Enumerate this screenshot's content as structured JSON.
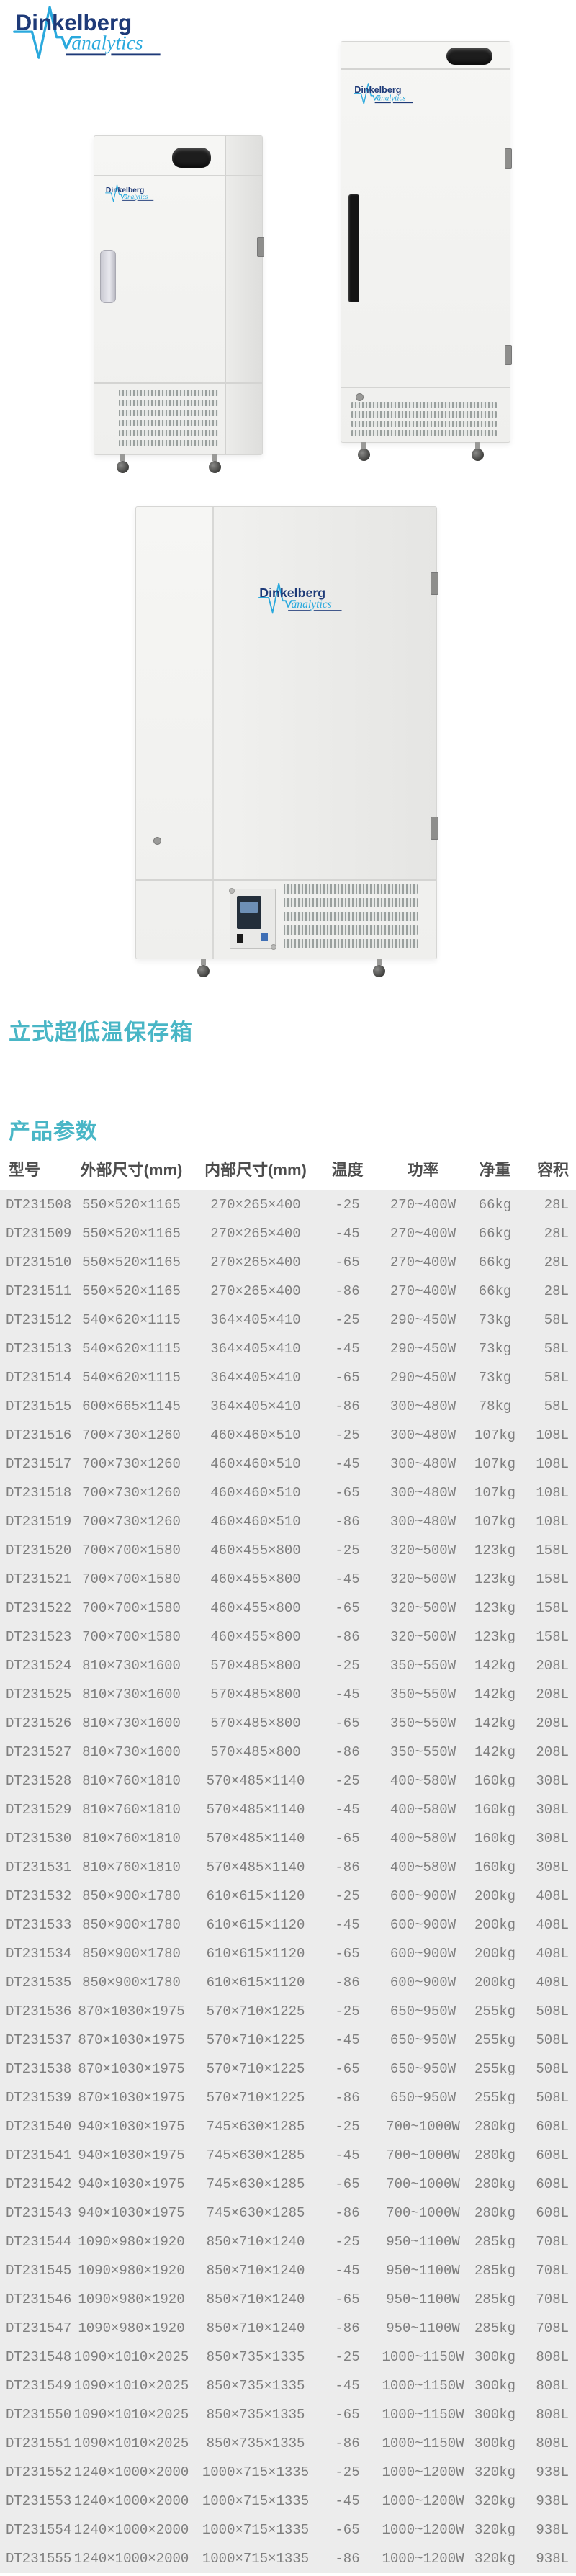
{
  "brand": {
    "name": "Dinkelberg",
    "tagline": "analytics"
  },
  "colors": {
    "brand_navy": "#1e3a78",
    "brand_blue": "#2aa9dd",
    "accent_teal": "#49b6c6",
    "table_header_text": "#4d4d4d",
    "table_body_text": "#7e7e7e",
    "table_body_bg": "#ececec"
  },
  "titles": {
    "product": "立式超低温保存箱",
    "section": "产品参数"
  },
  "table": {
    "columns": [
      "型号",
      "外部尺寸(mm)",
      "内部尺寸(mm)",
      "温度",
      "功率",
      "净重",
      "容积"
    ],
    "rows": [
      [
        "DT231508",
        "550×520×1165",
        "270×265×400",
        "-25",
        "270~400W",
        "66kg",
        "28L"
      ],
      [
        "DT231509",
        "550×520×1165",
        "270×265×400",
        "-45",
        "270~400W",
        "66kg",
        "28L"
      ],
      [
        "DT231510",
        "550×520×1165",
        "270×265×400",
        "-65",
        "270~400W",
        "66kg",
        "28L"
      ],
      [
        "DT231511",
        "550×520×1165",
        "270×265×400",
        "-86",
        "270~400W",
        "66kg",
        "28L"
      ],
      [
        "DT231512",
        "540×620×1115",
        "364×405×410",
        "-25",
        "290~450W",
        "73kg",
        "58L"
      ],
      [
        "DT231513",
        "540×620×1115",
        "364×405×410",
        "-45",
        "290~450W",
        "73kg",
        "58L"
      ],
      [
        "DT231514",
        "540×620×1115",
        "364×405×410",
        "-65",
        "290~450W",
        "73kg",
        "58L"
      ],
      [
        "DT231515",
        "600×665×1145",
        "364×405×410",
        "-86",
        "300~480W",
        "78kg",
        "58L"
      ],
      [
        "DT231516",
        "700×730×1260",
        "460×460×510",
        "-25",
        "300~480W",
        "107kg",
        "108L"
      ],
      [
        "DT231517",
        "700×730×1260",
        "460×460×510",
        "-45",
        "300~480W",
        "107kg",
        "108L"
      ],
      [
        "DT231518",
        "700×730×1260",
        "460×460×510",
        "-65",
        "300~480W",
        "107kg",
        "108L"
      ],
      [
        "DT231519",
        "700×730×1260",
        "460×460×510",
        "-86",
        "300~480W",
        "107kg",
        "108L"
      ],
      [
        "DT231520",
        "700×700×1580",
        "460×455×800",
        "-25",
        "320~500W",
        "123kg",
        "158L"
      ],
      [
        "DT231521",
        "700×700×1580",
        "460×455×800",
        "-45",
        "320~500W",
        "123kg",
        "158L"
      ],
      [
        "DT231522",
        "700×700×1580",
        "460×455×800",
        "-65",
        "320~500W",
        "123kg",
        "158L"
      ],
      [
        "DT231523",
        "700×700×1580",
        "460×455×800",
        "-86",
        "320~500W",
        "123kg",
        "158L"
      ],
      [
        "DT231524",
        "810×730×1600",
        "570×485×800",
        "-25",
        "350~550W",
        "142kg",
        "208L"
      ],
      [
        "DT231525",
        "810×730×1600",
        "570×485×800",
        "-45",
        "350~550W",
        "142kg",
        "208L"
      ],
      [
        "DT231526",
        "810×730×1600",
        "570×485×800",
        "-65",
        "350~550W",
        "142kg",
        "208L"
      ],
      [
        "DT231527",
        "810×730×1600",
        "570×485×800",
        "-86",
        "350~550W",
        "142kg",
        "208L"
      ],
      [
        "DT231528",
        "810×760×1810",
        "570×485×1140",
        "-25",
        "400~580W",
        "160kg",
        "308L"
      ],
      [
        "DT231529",
        "810×760×1810",
        "570×485×1140",
        "-45",
        "400~580W",
        "160kg",
        "308L"
      ],
      [
        "DT231530",
        "810×760×1810",
        "570×485×1140",
        "-65",
        "400~580W",
        "160kg",
        "308L"
      ],
      [
        "DT231531",
        "810×760×1810",
        "570×485×1140",
        "-86",
        "400~580W",
        "160kg",
        "308L"
      ],
      [
        "DT231532",
        "850×900×1780",
        "610×615×1120",
        "-25",
        "600~900W",
        "200kg",
        "408L"
      ],
      [
        "DT231533",
        "850×900×1780",
        "610×615×1120",
        "-45",
        "600~900W",
        "200kg",
        "408L"
      ],
      [
        "DT231534",
        "850×900×1780",
        "610×615×1120",
        "-65",
        "600~900W",
        "200kg",
        "408L"
      ],
      [
        "DT231535",
        "850×900×1780",
        "610×615×1120",
        "-86",
        "600~900W",
        "200kg",
        "408L"
      ],
      [
        "DT231536",
        "870×1030×1975",
        "570×710×1225",
        "-25",
        "650~950W",
        "255kg",
        "508L"
      ],
      [
        "DT231537",
        "870×1030×1975",
        "570×710×1225",
        "-45",
        "650~950W",
        "255kg",
        "508L"
      ],
      [
        "DT231538",
        "870×1030×1975",
        "570×710×1225",
        "-65",
        "650~950W",
        "255kg",
        "508L"
      ],
      [
        "DT231539",
        "870×1030×1975",
        "570×710×1225",
        "-86",
        "650~950W",
        "255kg",
        "508L"
      ],
      [
        "DT231540",
        "940×1030×1975",
        "745×630×1285",
        "-25",
        "700~1000W",
        "280kg",
        "608L"
      ],
      [
        "DT231541",
        "940×1030×1975",
        "745×630×1285",
        "-45",
        "700~1000W",
        "280kg",
        "608L"
      ],
      [
        "DT231542",
        "940×1030×1975",
        "745×630×1285",
        "-65",
        "700~1000W",
        "280kg",
        "608L"
      ],
      [
        "DT231543",
        "940×1030×1975",
        "745×630×1285",
        "-86",
        "700~1000W",
        "280kg",
        "608L"
      ],
      [
        "DT231544",
        "1090×980×1920",
        "850×710×1240",
        "-25",
        "950~1100W",
        "285kg",
        "708L"
      ],
      [
        "DT231545",
        "1090×980×1920",
        "850×710×1240",
        "-45",
        "950~1100W",
        "285kg",
        "708L"
      ],
      [
        "DT231546",
        "1090×980×1920",
        "850×710×1240",
        "-65",
        "950~1100W",
        "285kg",
        "708L"
      ],
      [
        "DT231547",
        "1090×980×1920",
        "850×710×1240",
        "-86",
        "950~1100W",
        "285kg",
        "708L"
      ],
      [
        "DT231548",
        "1090×1010×2025",
        "850×735×1335",
        "-25",
        "1000~1150W",
        "300kg",
        "808L"
      ],
      [
        "DT231549",
        "1090×1010×2025",
        "850×735×1335",
        "-45",
        "1000~1150W",
        "300kg",
        "808L"
      ],
      [
        "DT231550",
        "1090×1010×2025",
        "850×735×1335",
        "-65",
        "1000~1150W",
        "300kg",
        "808L"
      ],
      [
        "DT231551",
        "1090×1010×2025",
        "850×735×1335",
        "-86",
        "1000~1150W",
        "300kg",
        "808L"
      ],
      [
        "DT231552",
        "1240×1000×2000",
        "1000×715×1335",
        "-25",
        "1000~1200W",
        "320kg",
        "938L"
      ],
      [
        "DT231553",
        "1240×1000×2000",
        "1000×715×1335",
        "-45",
        "1000~1200W",
        "320kg",
        "938L"
      ],
      [
        "DT231554",
        "1240×1000×2000",
        "1000×715×1335",
        "-65",
        "1000~1200W",
        "320kg",
        "938L"
      ],
      [
        "DT231555",
        "1240×1000×2000",
        "1000×715×1335",
        "-86",
        "1000~1200W",
        "320kg",
        "938L"
      ]
    ]
  }
}
